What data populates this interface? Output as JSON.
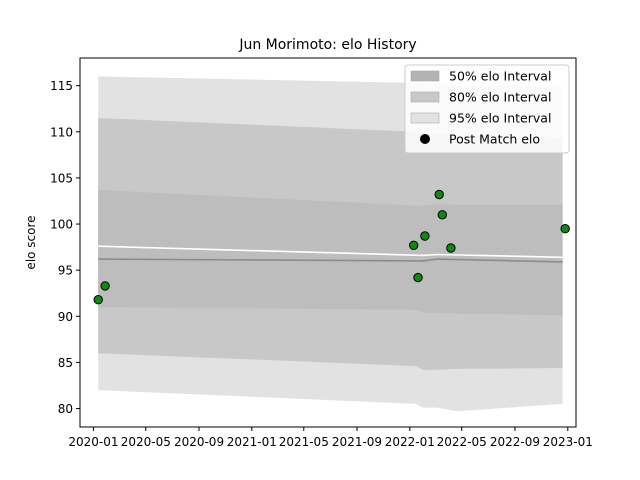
{
  "chart_data": {
    "type": "line",
    "title": "Jun Morimoto: elo History",
    "xlabel": "",
    "ylabel": "elo score",
    "xlim": [
      "2019-12-01",
      "2023-01-20"
    ],
    "ylim": [
      78,
      118
    ],
    "x_ticks": [
      "2020-01",
      "2020-05",
      "2020-09",
      "2021-01",
      "2021-05",
      "2021-09",
      "2022-01",
      "2022-05",
      "2022-09",
      "2023-01"
    ],
    "y_ticks": [
      80,
      85,
      90,
      95,
      100,
      105,
      110,
      115
    ],
    "grid": false,
    "legend_position": "top-right",
    "legend": [
      {
        "label": "50% elo Interval",
        "color": "#b3b3b3",
        "kind": "patch"
      },
      {
        "label": "80% elo Interval",
        "color": "#c8c8c8",
        "kind": "patch"
      },
      {
        "label": "95% elo Interval",
        "color": "#e2e2e2",
        "kind": "patch"
      },
      {
        "label": "Post Match elo",
        "color": "#000000",
        "kind": "marker"
      }
    ],
    "bands": [
      {
        "name": "95% elo Interval",
        "color": "#e2e2e2",
        "points": [
          [
            "2020-01-12",
            82.0,
            116.0
          ],
          [
            "2022-01-15",
            80.5,
            115.3
          ],
          [
            "2022-02-01",
            80.1,
            115.2
          ],
          [
            "2022-03-05",
            80.1,
            115.2
          ],
          [
            "2022-04-20",
            79.7,
            115.0
          ],
          [
            "2022-12-20",
            80.5,
            115.0
          ]
        ]
      },
      {
        "name": "80% elo Interval",
        "color": "#c8c8c8",
        "points": [
          [
            "2020-01-12",
            86.0,
            111.5
          ],
          [
            "2022-01-15",
            84.6,
            110.0
          ],
          [
            "2022-02-01",
            84.2,
            109.8
          ],
          [
            "2022-03-05",
            84.2,
            109.8
          ],
          [
            "2022-04-20",
            84.3,
            109.6
          ],
          [
            "2022-12-20",
            84.4,
            109.4
          ]
        ]
      },
      {
        "name": "50% elo Interval",
        "color": "#bdbdbd",
        "points": [
          [
            "2020-01-12",
            91.0,
            103.7
          ],
          [
            "2022-01-15",
            90.7,
            102.0
          ],
          [
            "2022-02-01",
            90.4,
            102.0
          ],
          [
            "2022-03-05",
            90.4,
            102.2
          ],
          [
            "2022-04-20",
            90.3,
            102.1
          ],
          [
            "2022-12-20",
            90.1,
            102.1
          ]
        ]
      }
    ],
    "lines": [
      {
        "role": "median",
        "color": "#8c8c8c",
        "points": [
          [
            "2020-01-12",
            96.2
          ],
          [
            "2022-02-01",
            96.0
          ],
          [
            "2022-03-05",
            96.2
          ],
          [
            "2022-12-20",
            95.9
          ]
        ]
      },
      {
        "role": "mean",
        "color": "#ffffff",
        "points": [
          [
            "2020-01-12",
            97.6
          ],
          [
            "2022-02-01",
            96.6
          ],
          [
            "2022-03-05",
            96.7
          ],
          [
            "2022-12-20",
            96.4
          ]
        ]
      }
    ],
    "series": [
      {
        "name": "Post Match elo",
        "marker_color": "#118811",
        "x": [
          "2020-01-12",
          "2020-01-28",
          "2022-01-10",
          "2022-01-20",
          "2022-02-05",
          "2022-03-10",
          "2022-03-17",
          "2022-04-06",
          "2022-12-26"
        ],
        "y": [
          91.8,
          93.3,
          97.7,
          94.2,
          98.7,
          103.2,
          101.0,
          97.4,
          99.5
        ]
      }
    ]
  }
}
